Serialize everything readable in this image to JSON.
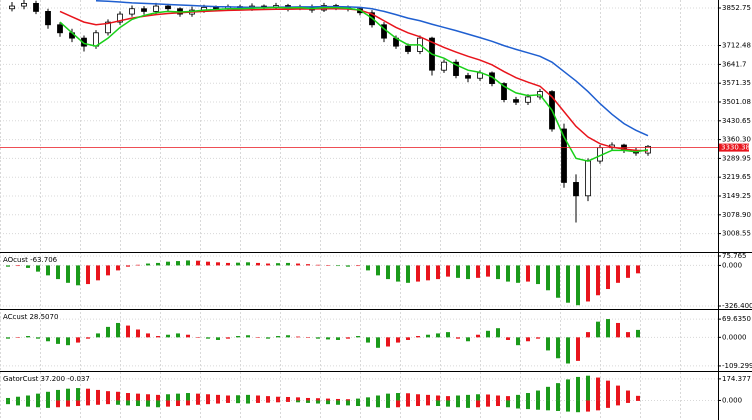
{
  "chart_data": [
    {
      "type": "candlestick",
      "open": [
        3850,
        3860,
        3870,
        3840,
        3790,
        3760,
        3740,
        3710,
        3760,
        3800,
        3830,
        3850,
        3840,
        3860,
        3850,
        3830,
        3845,
        3855,
        3850,
        3858,
        3852,
        3860,
        3855,
        3862,
        3850,
        3857,
        3845,
        3862,
        3855,
        3850,
        3835,
        3790,
        3740,
        3710,
        3690,
        3740,
        3620,
        3650,
        3600,
        3590,
        3610,
        3570,
        3510,
        3500,
        3520,
        3540,
        3400,
        3200,
        3150,
        3280,
        3330,
        3340,
        3320,
        3310
      ],
      "high": [
        3875,
        3885,
        3880,
        3850,
        3800,
        3775,
        3750,
        3770,
        3810,
        3840,
        3862,
        3860,
        3872,
        3868,
        3855,
        3858,
        3865,
        3862,
        3866,
        3865,
        3870,
        3866,
        3872,
        3868,
        3865,
        3866,
        3872,
        3868,
        3862,
        3855,
        3845,
        3800,
        3750,
        3720,
        3750,
        3745,
        3660,
        3660,
        3610,
        3620,
        3615,
        3575,
        3520,
        3530,
        3550,
        3545,
        3420,
        3230,
        3290,
        3340,
        3350,
        3345,
        3330,
        3340
      ],
      "low": [
        3840,
        3848,
        3830,
        3775,
        3745,
        3725,
        3690,
        3700,
        3750,
        3790,
        3820,
        3828,
        3830,
        3840,
        3820,
        3820,
        3835,
        3840,
        3842,
        3845,
        3842,
        3848,
        3848,
        3840,
        3845,
        3835,
        3838,
        3845,
        3840,
        3825,
        3780,
        3725,
        3700,
        3680,
        3680,
        3600,
        3610,
        3590,
        3575,
        3580,
        3560,
        3500,
        3490,
        3490,
        3510,
        3390,
        3180,
        3050,
        3130,
        3270,
        3320,
        3310,
        3300,
        3300
      ],
      "close": [
        3860,
        3870,
        3840,
        3790,
        3760,
        3740,
        3710,
        3760,
        3800,
        3830,
        3850,
        3840,
        3860,
        3850,
        3830,
        3845,
        3855,
        3850,
        3858,
        3852,
        3860,
        3855,
        3862,
        3850,
        3857,
        3845,
        3862,
        3855,
        3850,
        3835,
        3790,
        3740,
        3710,
        3690,
        3740,
        3620,
        3650,
        3600,
        3590,
        3610,
        3570,
        3510,
        3500,
        3520,
        3540,
        3400,
        3200,
        3150,
        3280,
        3330,
        3340,
        3320,
        3310,
        3335
      ],
      "series": [
        {
          "color": "#1f5fd0",
          "values": [
            null,
            null,
            null,
            null,
            null,
            null,
            null,
            3880,
            3878,
            3875,
            3872,
            3870,
            3868,
            3866,
            3864,
            3862,
            3860,
            3858,
            3857,
            3856,
            3855,
            3855,
            3856,
            3856,
            3857,
            3857,
            3858,
            3858,
            3857,
            3855,
            3850,
            3840,
            3828,
            3815,
            3805,
            3792,
            3780,
            3768,
            3755,
            3742,
            3728,
            3712,
            3698,
            3685,
            3672,
            3650,
            3615,
            3580,
            3540,
            3495,
            3455,
            3420,
            3395,
            3375
          ]
        },
        {
          "color": "#e8141c",
          "values": [
            null,
            null,
            null,
            null,
            3840,
            3820,
            3800,
            3790,
            3795,
            3805,
            3815,
            3822,
            3828,
            3832,
            3835,
            3838,
            3840,
            3842,
            3844,
            3845,
            3846,
            3847,
            3848,
            3848,
            3849,
            3849,
            3850,
            3850,
            3849,
            3845,
            3830,
            3805,
            3780,
            3760,
            3745,
            3725,
            3705,
            3688,
            3672,
            3658,
            3640,
            3615,
            3592,
            3575,
            3560,
            3520,
            3465,
            3410,
            3370,
            3345,
            3332,
            3325,
            3320,
            3318
          ]
        },
        {
          "color": "#18d018",
          "values": [
            null,
            null,
            null,
            null,
            3800,
            3760,
            3720,
            3710,
            3740,
            3780,
            3810,
            3825,
            3835,
            3840,
            3838,
            3840,
            3845,
            3847,
            3850,
            3850,
            3852,
            3853,
            3855,
            3853,
            3854,
            3851,
            3854,
            3854,
            3852,
            3845,
            3815,
            3775,
            3740,
            3715,
            3715,
            3680,
            3665,
            3640,
            3620,
            3612,
            3595,
            3560,
            3535,
            3525,
            3528,
            3470,
            3370,
            3290,
            3280,
            3300,
            3320,
            3320,
            3315,
            3322
          ]
        }
      ],
      "current_price": 3330.38,
      "price_color": "#e8141c",
      "ylim": [
        2939.7,
        3882.7
      ],
      "yticks": [
        3852.75,
        3712.48,
        3641.7,
        3571.35,
        3501.08,
        3430.65,
        {
          "value": 3360.3,
          "label": "3360.30"
        },
        3289.95,
        3219.65,
        3149.25,
        {
          "value": 3078.9,
          "label": "3078.90"
        },
        3008.55
      ]
    },
    {
      "type": "bar",
      "label": "AOcust -63.706",
      "up_color": "#1a9a1a",
      "down_color": "#e8141c",
      "series": [
        {
          "values": [
            -10,
            -5,
            -20,
            -50,
            -80,
            -110,
            -140,
            -160,
            -150,
            -120,
            -80,
            -40,
            -10,
            5,
            15,
            20,
            30,
            35,
            40,
            38,
            30,
            25,
            20,
            22,
            25,
            20,
            15,
            18,
            20,
            15,
            10,
            5,
            0,
            -5,
            -10,
            -5,
            -40,
            -80,
            -110,
            -130,
            -140,
            -130,
            -120,
            -110,
            -90,
            -100,
            -110,
            -100,
            -90,
            -110,
            -130,
            -140,
            -130,
            -150,
            -200,
            -260,
            -300,
            -320,
            -290,
            -240,
            -190,
            -140,
            -100,
            -63.706
          ]
        }
      ],
      "ylim": [
        -342.5,
        91.8
      ],
      "yticks": [
        75.765,
        {
          "value": 0,
          "label": "0.000"
        },
        {
          "value": -326.4,
          "label": "-326.400"
        }
      ]
    },
    {
      "type": "bar",
      "label": "ACcust 28.5070",
      "up_color": "#1a9a1a",
      "down_color": "#e8141c",
      "series": [
        {
          "values": [
            -5,
            0,
            5,
            -5,
            -15,
            -25,
            -30,
            -20,
            -5,
            15,
            40,
            55,
            45,
            30,
            15,
            5,
            10,
            15,
            10,
            0,
            -5,
            -10,
            -5,
            5,
            8,
            0,
            -5,
            5,
            8,
            3,
            -2,
            -5,
            -8,
            -10,
            -5,
            5,
            -20,
            -40,
            -35,
            -20,
            -10,
            5,
            10,
            15,
            20,
            -5,
            -15,
            10,
            25,
            35,
            -10,
            -30,
            -15,
            -5,
            -50,
            -80,
            -100,
            -90,
            20,
            60,
            70,
            55,
            20,
            28.507
          ]
        }
      ],
      "ylim": [
        -124.9,
        100.76
      ],
      "yticks": [
        {
          "value": 69.635,
          "label": "69.6350"
        },
        {
          "value": 0,
          "label": "0.0000"
        },
        -109.2995
      ]
    },
    {
      "type": "bar",
      "label": "GatorCust 37.200 -0.037",
      "up_color": "#1a9a1a",
      "down_color": "#e8141c",
      "series": [
        {
          "values": [
            20,
            30,
            40,
            55,
            70,
            85,
            95,
            100,
            95,
            85,
            75,
            70,
            60,
            55,
            50,
            45,
            50,
            55,
            60,
            55,
            50,
            45,
            40,
            42,
            45,
            40,
            35,
            30,
            28,
            25,
            20,
            18,
            15,
            12,
            10,
            15,
            25,
            40,
            55,
            60,
            58,
            50,
            45,
            40,
            35,
            40,
            45,
            50,
            48,
            40,
            35,
            45,
            60,
            80,
            110,
            140,
            170,
            190,
            200,
            185,
            160,
            120,
            80,
            37.2
          ]
        },
        {
          "values": [
            -30,
            -40,
            -50,
            -55,
            -60,
            -55,
            -50,
            -45,
            -40,
            -35,
            -30,
            -35,
            -40,
            -45,
            -50,
            -55,
            -50,
            -45,
            -40,
            -35,
            -30,
            -25,
            -20,
            -22,
            -25,
            -20,
            -18,
            -15,
            -12,
            -15,
            -20,
            -25,
            -30,
            -35,
            -40,
            -45,
            -50,
            -55,
            -60,
            -55,
            -50,
            -45,
            -40,
            -45,
            -50,
            -55,
            -60,
            -55,
            -50,
            -45,
            -55,
            -65,
            -70,
            -75,
            -80,
            -85,
            -90,
            -95,
            -90,
            -80,
            -60,
            -40,
            -20,
            -0.037
          ]
        }
      ],
      "ylim": [
        -158,
        221.8
      ],
      "yticks": [
        174.377,
        {
          "value": 0,
          "label": "0.000"
        }
      ]
    }
  ]
}
